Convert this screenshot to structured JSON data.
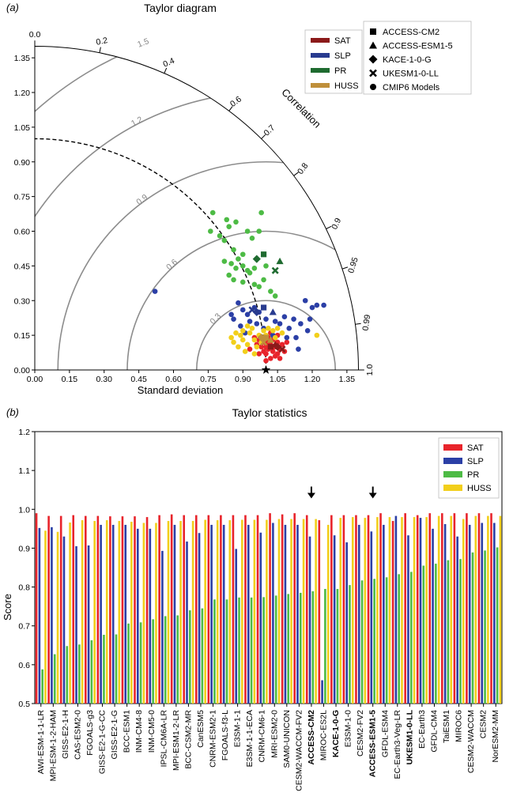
{
  "chart_data": [
    {
      "panel_label": "(a)",
      "type": "scatter",
      "title": "Taylor diagram",
      "xlabel": "Standard deviation",
      "correlation_label": "Correlation",
      "ylim": [
        0,
        1.4
      ],
      "xlim": [
        0,
        1.4
      ],
      "ticks": [
        "0.00",
        "0.15",
        "0.30",
        "0.45",
        "0.60",
        "0.75",
        "0.90",
        "1.05",
        "1.20",
        "1.35"
      ],
      "correlation_ticks": [
        "0.0",
        "0.2",
        "0.4",
        "0.6",
        "0.7",
        "0.8",
        "0.9",
        "0.95",
        "0.99",
        "1.0"
      ],
      "correlation_values": [
        0.0,
        0.2,
        0.4,
        0.6,
        0.7,
        0.8,
        0.9,
        0.95,
        0.99,
        1.0
      ],
      "rmsd_contours": [
        {
          "label": "0.3",
          "value": 0.3
        },
        {
          "label": "0.6",
          "value": 0.6
        },
        {
          "label": "0.9",
          "value": 0.9
        },
        {
          "label": "1.2",
          "value": 1.2
        },
        {
          "label": "1.5",
          "value": 1.5
        }
      ],
      "reference_std": 1.0,
      "variable_legend": [
        {
          "name": "SAT",
          "color": "#8b1a1a"
        },
        {
          "name": "SLP",
          "color": "#283b8f"
        },
        {
          "name": "PR",
          "color": "#1f6b30"
        },
        {
          "name": "HUSS",
          "color": "#bf8f3a"
        }
      ],
      "marker_legend": [
        {
          "name": "ACCESS-CM2",
          "marker": "square"
        },
        {
          "name": "ACCESS-ESM1-5",
          "marker": "triangle"
        },
        {
          "name": "KACE-1-0-G",
          "marker": "diamond"
        },
        {
          "name": "UKESM1-0-LL",
          "marker": "cross"
        },
        {
          "name": "CMIP6 Models",
          "marker": "circle"
        }
      ],
      "series": [
        {
          "name": "SAT",
          "color": "#e8242b",
          "points": [
            [
              1.0,
              0.1
            ],
            [
              1.01,
              0.09
            ],
            [
              1.02,
              0.11
            ],
            [
              1.03,
              0.08
            ],
            [
              0.99,
              0.12
            ],
            [
              1.04,
              0.1
            ],
            [
              1.05,
              0.12
            ],
            [
              1.0,
              0.07
            ],
            [
              0.98,
              0.1
            ],
            [
              1.02,
              0.05
            ],
            [
              1.06,
              0.09
            ],
            [
              1.03,
              0.13
            ],
            [
              0.97,
              0.13
            ],
            [
              1.01,
              0.14
            ],
            [
              1.07,
              0.11
            ],
            [
              0.99,
              0.08
            ],
            [
              1.04,
              0.06
            ],
            [
              1.05,
              0.15
            ],
            [
              0.96,
              0.11
            ],
            [
              1.08,
              0.08
            ],
            [
              1.02,
              0.16
            ],
            [
              0.95,
              0.14
            ],
            [
              1.06,
              0.05
            ],
            [
              1.0,
              0.04
            ],
            [
              0.93,
              0.09
            ],
            [
              1.09,
              0.12
            ],
            [
              1.03,
              0.1
            ],
            [
              0.97,
              0.07
            ],
            [
              1.01,
              0.12
            ],
            [
              1.05,
              0.07
            ]
          ]
        },
        {
          "name": "SLP",
          "color": "#2b3fa6",
          "points": [
            [
              0.52,
              0.34
            ],
            [
              0.88,
              0.29
            ],
            [
              0.9,
              0.26
            ],
            [
              0.95,
              0.27
            ],
            [
              0.92,
              0.24
            ],
            [
              0.97,
              0.25
            ],
            [
              0.96,
              0.2
            ],
            [
              0.93,
              0.21
            ],
            [
              0.91,
              0.16
            ],
            [
              1.0,
              0.22
            ],
            [
              1.04,
              0.21
            ],
            [
              1.08,
              0.23
            ],
            [
              1.12,
              0.22
            ],
            [
              1.15,
              0.2
            ],
            [
              1.18,
              0.17
            ],
            [
              1.2,
              0.27
            ],
            [
              1.22,
              0.28
            ],
            [
              1.17,
              0.3
            ],
            [
              1.25,
              0.28
            ],
            [
              1.13,
              0.14
            ],
            [
              1.09,
              0.14
            ],
            [
              1.14,
              0.09
            ],
            [
              0.86,
              0.22
            ],
            [
              0.89,
              0.19
            ],
            [
              1.1,
              0.18
            ],
            [
              0.99,
              0.18
            ],
            [
              1.06,
              0.2
            ],
            [
              0.85,
              0.24
            ],
            [
              1.03,
              0.15
            ],
            [
              1.19,
              0.22
            ]
          ]
        },
        {
          "name": "PR",
          "color": "#4dbb45",
          "points": [
            [
              0.77,
              0.68
            ],
            [
              0.83,
              0.65
            ],
            [
              0.87,
              0.64
            ],
            [
              0.98,
              0.68
            ],
            [
              0.76,
              0.6
            ],
            [
              0.8,
              0.58
            ],
            [
              0.82,
              0.56
            ],
            [
              0.84,
              0.62
            ],
            [
              0.92,
              0.6
            ],
            [
              0.94,
              0.57
            ],
            [
              0.97,
              0.6
            ],
            [
              0.86,
              0.52
            ],
            [
              0.88,
              0.48
            ],
            [
              0.9,
              0.5
            ],
            [
              0.85,
              0.46
            ],
            [
              0.87,
              0.44
            ],
            [
              0.9,
              0.45
            ],
            [
              0.92,
              0.43
            ],
            [
              0.84,
              0.41
            ],
            [
              0.93,
              0.42
            ],
            [
              0.95,
              0.44
            ],
            [
              1.0,
              0.45
            ],
            [
              0.99,
              0.39
            ],
            [
              0.97,
              0.36
            ],
            [
              1.02,
              0.34
            ],
            [
              1.04,
              0.32
            ],
            [
              0.9,
              0.38
            ],
            [
              0.95,
              0.37
            ],
            [
              0.86,
              0.39
            ],
            [
              0.82,
              0.47
            ]
          ]
        },
        {
          "name": "HUSS",
          "color": "#f2cf1b",
          "points": [
            [
              0.86,
              0.12
            ],
            [
              0.88,
              0.1
            ],
            [
              0.9,
              0.13
            ],
            [
              0.92,
              0.11
            ],
            [
              0.89,
              0.15
            ],
            [
              0.93,
              0.16
            ],
            [
              0.95,
              0.13
            ],
            [
              0.96,
              0.1
            ],
            [
              0.91,
              0.08
            ],
            [
              0.87,
              0.16
            ],
            [
              0.94,
              0.18
            ],
            [
              0.97,
              0.15
            ],
            [
              0.99,
              0.17
            ],
            [
              1.01,
              0.18
            ],
            [
              1.03,
              0.17
            ],
            [
              1.05,
              0.18
            ],
            [
              1.07,
              0.16
            ],
            [
              0.98,
              0.12
            ],
            [
              0.9,
              0.17
            ],
            [
              1.22,
              0.15
            ],
            [
              0.85,
              0.14
            ],
            [
              0.95,
              0.07
            ],
            [
              1.04,
              0.14
            ],
            [
              1.0,
              0.15
            ],
            [
              0.92,
              0.19
            ]
          ]
        }
      ],
      "highlighted_models": [
        {
          "model": "ACCESS-CM2",
          "marker": "square",
          "color": "#1f6b30",
          "x": 0.99,
          "y": 0.5
        },
        {
          "model": "ACCESS-ESM1-5",
          "marker": "triangle",
          "color": "#1f6b30",
          "x": 1.06,
          "y": 0.47
        },
        {
          "model": "KACE-1-0-G",
          "marker": "diamond",
          "color": "#1f6b30",
          "x": 0.96,
          "y": 0.48
        },
        {
          "model": "UKESM1-0-LL",
          "marker": "cross",
          "color": "#1f6b30",
          "x": 1.04,
          "y": 0.43
        },
        {
          "model": "ACCESS-CM2",
          "marker": "square",
          "color": "#283b8f",
          "x": 0.99,
          "y": 0.27
        },
        {
          "model": "ACCESS-ESM1-5",
          "marker": "triangle",
          "color": "#283b8f",
          "x": 1.03,
          "y": 0.25
        },
        {
          "model": "KACE-1-0-G",
          "marker": "diamond",
          "color": "#283b8f",
          "x": 0.96,
          "y": 0.25
        },
        {
          "model": "UKESM1-0-LL",
          "marker": "cross",
          "color": "#283b8f",
          "x": 0.94,
          "y": 0.26
        },
        {
          "model": "ACCESS-CM2",
          "marker": "square",
          "color": "#bf8f3a",
          "x": 1.0,
          "y": 0.14
        },
        {
          "model": "ACCESS-ESM1-5",
          "marker": "triangle",
          "color": "#bf8f3a",
          "x": 1.02,
          "y": 0.13
        },
        {
          "model": "KACE-1-0-G",
          "marker": "diamond",
          "color": "#bf8f3a",
          "x": 0.98,
          "y": 0.14
        },
        {
          "model": "UKESM1-0-LL",
          "marker": "cross",
          "color": "#bf8f3a",
          "x": 0.99,
          "y": 0.12
        },
        {
          "model": "ACCESS-CM2",
          "marker": "square",
          "color": "#8b1a1a",
          "x": 1.02,
          "y": 0.1
        },
        {
          "model": "ACCESS-ESM1-5",
          "marker": "triangle",
          "color": "#8b1a1a",
          "x": 1.04,
          "y": 0.11
        },
        {
          "model": "KACE-1-0-G",
          "marker": "diamond",
          "color": "#8b1a1a",
          "x": 1.05,
          "y": 0.1
        },
        {
          "model": "UKESM1-0-LL",
          "marker": "cross",
          "color": "#8b1a1a",
          "x": 1.07,
          "y": 0.09
        }
      ]
    },
    {
      "panel_label": "(b)",
      "type": "bar",
      "title": "Taylor statistics",
      "ylabel": "Score",
      "ylim": [
        0.5,
        1.2
      ],
      "yticks": [
        "0.5",
        "0.6",
        "0.7",
        "0.8",
        "0.9",
        "1.0",
        "1.1",
        "1.2"
      ],
      "legend_position": "top-right",
      "categories": [
        "AWI-ESM-1-1-LR",
        "MPI-ESM-1-2-HAM",
        "GISS-E2-1-H",
        "CAS-ESM2-0",
        "FGOALS-g3",
        "GISS-E2-1-G-CC",
        "GISS-E2-1-G",
        "BCC-ESM1",
        "INM-CM4-8",
        "INM-CM5-0",
        "IPSL-CM6A-LR",
        "MPI-ESM1-2-LR",
        "BCC-CSM2-MR",
        "CanESM5",
        "CNRM-ESM2-1",
        "FGOALS-f3-L",
        "E3SM-1-1",
        "E3SM-1-1-ECA",
        "CNRM-CM6-1",
        "MRI-ESM2-0",
        "SAM0-UNICON",
        "CESM2-WACCM-FV2",
        "ACCESS-CM2",
        "MIROC-ES2L",
        "KACE-1-0-G",
        "E3SM-1-0",
        "CESM2-FV2",
        "ACCESS-ESM1-5",
        "GFDL-ESM4",
        "EC-Earth3-Veg-LR",
        "UKESM1-0-LL",
        "EC-Earth3",
        "GFDL-CM4",
        "TaiESM1",
        "MIROC6",
        "CESM2-WACCM",
        "CESM2",
        "NorESM2-MM"
      ],
      "bold_categories": [
        "ACCESS-CM2",
        "KACE-1-0-G",
        "ACCESS-ESM1-5",
        "UKESM1-0-LL"
      ],
      "arrow_categories": [
        "ACCESS-CM2",
        "ACCESS-ESM1-5"
      ],
      "series": [
        {
          "name": "SAT",
          "color": "#e8242b",
          "values": [
            0.99,
            0.983,
            0.983,
            0.985,
            0.983,
            0.983,
            0.982,
            0.982,
            0.982,
            0.98,
            0.985,
            0.987,
            0.985,
            0.985,
            0.985,
            0.985,
            0.985,
            0.985,
            0.985,
            0.99,
            0.987,
            0.99,
            0.985,
            0.972,
            0.985,
            0.985,
            0.985,
            0.985,
            0.99,
            0.97,
            0.99,
            0.985,
            0.99,
            0.99,
            0.99,
            0.99,
            0.99,
            0.99
          ]
        },
        {
          "name": "SLP",
          "color": "#2b3fa6",
          "values": [
            0.952,
            0.954,
            0.93,
            0.905,
            0.907,
            0.96,
            0.96,
            0.96,
            0.95,
            0.95,
            0.893,
            0.96,
            0.917,
            0.939,
            0.96,
            0.96,
            0.898,
            0.96,
            0.94,
            0.965,
            0.96,
            0.96,
            0.93,
            0.56,
            0.933,
            0.915,
            0.96,
            0.943,
            0.96,
            0.983,
            0.933,
            0.978,
            0.95,
            0.962,
            0.93,
            0.96,
            0.965,
            0.965
          ]
        },
        {
          "name": "PR",
          "color": "#4dbb45",
          "values": [
            0.588,
            0.627,
            0.648,
            0.652,
            0.663,
            0.677,
            0.678,
            0.706,
            0.709,
            0.717,
            0.725,
            0.727,
            0.74,
            0.745,
            0.768,
            0.768,
            0.773,
            0.773,
            0.774,
            0.778,
            0.782,
            0.785,
            0.789,
            0.795,
            0.795,
            0.805,
            0.817,
            0.821,
            0.825,
            0.833,
            0.839,
            0.855,
            0.86,
            0.869,
            0.872,
            0.889,
            0.894,
            0.902
          ]
        },
        {
          "name": "HUSS",
          "color": "#f2cf1b",
          "values": [
            0.945,
            0.942,
            0.966,
            0.972,
            0.97,
            0.972,
            0.97,
            0.968,
            0.965,
            0.965,
            0.97,
            0.97,
            0.97,
            0.973,
            0.972,
            0.972,
            0.973,
            0.973,
            0.973,
            0.975,
            0.975,
            0.975,
            0.975,
            0.96,
            0.978,
            0.98,
            0.978,
            0.98,
            0.98,
            0.98,
            0.98,
            0.98,
            0.983,
            0.983,
            0.975,
            0.983,
            0.983,
            0.983
          ]
        }
      ]
    }
  ]
}
